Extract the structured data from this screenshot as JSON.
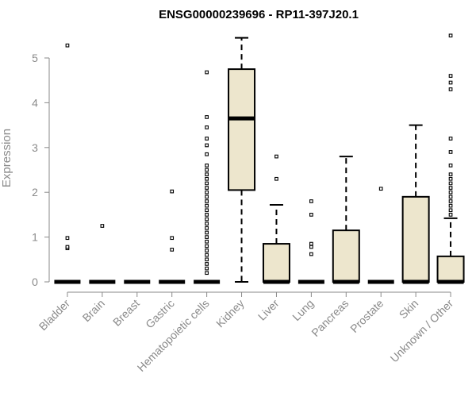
{
  "chart_data": {
    "type": "boxplot",
    "title": "ENSG00000239696 - RP11-397J20.1",
    "ylabel": "Expression",
    "xlabel": "",
    "ylim": [
      0,
      5.5
    ],
    "yticks": [
      0,
      1,
      2,
      3,
      4,
      5
    ],
    "grid": false,
    "box_fill": "#ede6cd",
    "box_stroke": "#000000",
    "outlier_stroke": "#000000",
    "categories": [
      "Bladder",
      "Brain",
      "Breast",
      "Gastric",
      "Hematopoietic cells",
      "Kidney",
      "Liver",
      "Lung",
      "Pancreas",
      "Prostate",
      "Skin",
      "Unknown / Other"
    ],
    "boxes": [
      {
        "category": "Bladder",
        "min": 0,
        "q1": 0,
        "median": 0,
        "q3": 0,
        "max": 0,
        "outliers": [
          0.75,
          0.78,
          0.98,
          5.28
        ]
      },
      {
        "category": "Brain",
        "min": 0,
        "q1": 0,
        "median": 0,
        "q3": 0,
        "max": 0,
        "outliers": [
          1.25
        ]
      },
      {
        "category": "Breast",
        "min": 0,
        "q1": 0,
        "median": 0,
        "q3": 0,
        "max": 0,
        "outliers": []
      },
      {
        "category": "Gastric",
        "min": 0,
        "q1": 0,
        "median": 0,
        "q3": 0,
        "max": 0,
        "outliers": [
          0.72,
          0.98,
          2.02
        ]
      },
      {
        "category": "Hematopoietic cells",
        "min": 0,
        "q1": 0,
        "median": 0,
        "q3": 0,
        "max": 0,
        "outliers": [
          0.2,
          0.3,
          0.4,
          0.5,
          0.6,
          0.7,
          0.8,
          0.9,
          1.0,
          1.1,
          1.2,
          1.3,
          1.4,
          1.5,
          1.6,
          1.7,
          1.8,
          1.9,
          2.0,
          2.1,
          2.2,
          2.3,
          2.4,
          2.5,
          2.6,
          2.85,
          3.05,
          3.2,
          3.45,
          3.68,
          4.68
        ]
      },
      {
        "category": "Kidney",
        "min": 0,
        "q1": 2.05,
        "median": 3.65,
        "q3": 4.75,
        "max": 5.45,
        "outliers": []
      },
      {
        "category": "Liver",
        "min": 0,
        "q1": 0,
        "median": 0,
        "q3": 0.85,
        "max": 1.72,
        "outliers": [
          2.3,
          2.8
        ]
      },
      {
        "category": "Lung",
        "min": 0,
        "q1": 0,
        "median": 0,
        "q3": 0,
        "max": 0,
        "outliers": [
          0.62,
          0.78,
          0.85,
          1.5,
          1.8
        ]
      },
      {
        "category": "Pancreas",
        "min": 0,
        "q1": 0,
        "median": 0,
        "q3": 1.15,
        "max": 2.8,
        "outliers": []
      },
      {
        "category": "Prostate",
        "min": 0,
        "q1": 0,
        "median": 0,
        "q3": 0,
        "max": 0,
        "outliers": [
          2.08
        ]
      },
      {
        "category": "Skin",
        "min": 0,
        "q1": 0,
        "median": 0,
        "q3": 1.9,
        "max": 3.5,
        "outliers": []
      },
      {
        "category": "Unknown / Other",
        "min": 0,
        "q1": 0,
        "median": 0,
        "q3": 0.57,
        "max": 1.42,
        "outliers": [
          1.5,
          1.6,
          1.7,
          1.8,
          1.9,
          2.0,
          2.1,
          2.2,
          2.3,
          2.4,
          2.6,
          2.9,
          3.2,
          4.3,
          4.45,
          4.6,
          5.5
        ]
      }
    ]
  }
}
